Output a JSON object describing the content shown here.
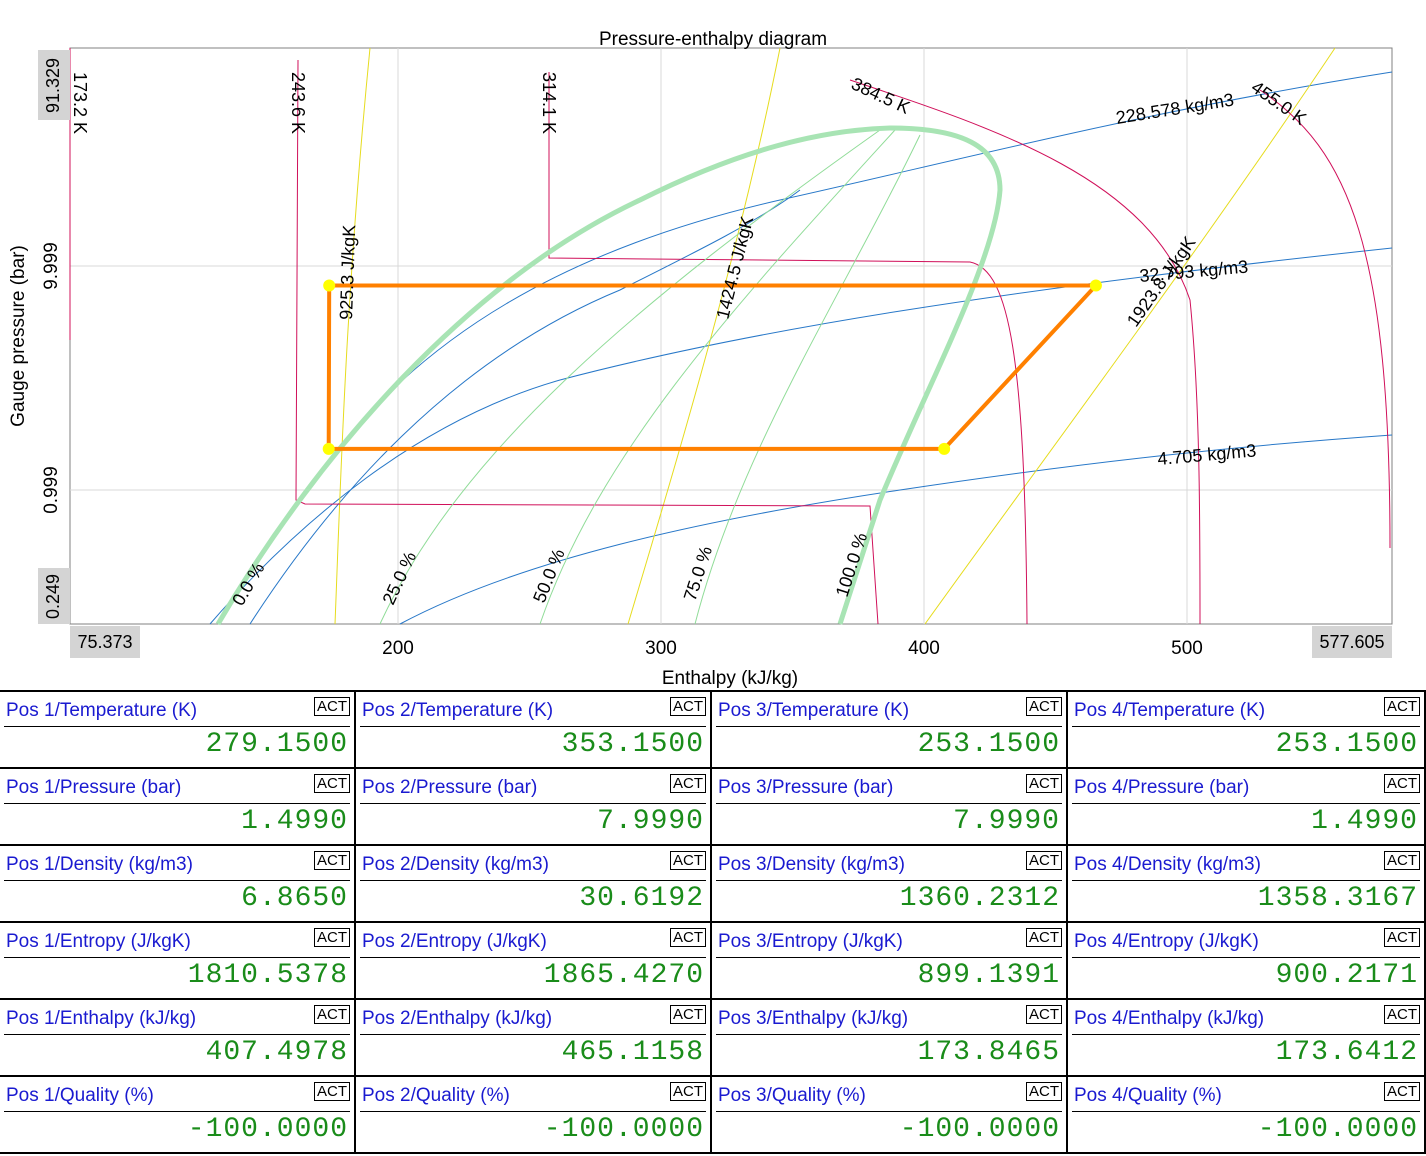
{
  "chart_data": {
    "type": "line",
    "title": "Pressure-enthalpy diagram",
    "xlabel": "Enthalpy (kJ/kg)",
    "ylabel": "Gauge pressure (bar)",
    "xlim": [
      75.373,
      577.605
    ],
    "ylim": [
      0.249,
      91.329
    ],
    "y_scale": "log",
    "grid": true,
    "x_ticks": [
      "200",
      "300",
      "400",
      "500"
    ],
    "x_range_labels": [
      "75.373",
      "577.605"
    ],
    "y_ticks": [
      "9.999",
      "0.999"
    ],
    "y_range_labels": [
      "91.329",
      "0.249"
    ],
    "isotherm_labels": [
      "173.2 K",
      "243.6 K",
      "314.1 K",
      "384.5 K",
      "455.0 K"
    ],
    "isentrope_labels": [
      "925.3 J/kgK",
      "1424.5 J/kgK",
      "1923.8 J/kgK"
    ],
    "isochore_labels": [
      "228.578 kg/m3",
      "32.793 kg/m3",
      "4.705 kg/m3"
    ],
    "quality_labels": [
      "0.0 %",
      "25.0 %",
      "50.0 %",
      "75.0 %",
      "100.0 %"
    ],
    "cycle": [
      {
        "name": "Pos 1",
        "h": 407.4978,
        "p": 1.499
      },
      {
        "name": "Pos 2",
        "h": 465.1158,
        "p": 7.999
      },
      {
        "name": "Pos 3",
        "h": 173.8465,
        "p": 7.999
      },
      {
        "name": "Pos 4",
        "h": 173.6412,
        "p": 1.499
      }
    ],
    "colors": {
      "cycle": "#ff8000",
      "points": "#ffff00",
      "saturation": "#a8e4b4",
      "quality": "#90dc98",
      "isotherm": "#d0105a",
      "isentrope": "#e6dc1e",
      "isochore": "#2878c8"
    }
  },
  "table": {
    "act_label": "ACT",
    "rows": [
      [
        {
          "label": "Pos 1/Temperature (K)",
          "value": "279.1500"
        },
        {
          "label": "Pos 2/Temperature (K)",
          "value": "353.1500"
        },
        {
          "label": "Pos 3/Temperature (K)",
          "value": "253.1500"
        },
        {
          "label": "Pos 4/Temperature (K)",
          "value": "253.1500"
        }
      ],
      [
        {
          "label": "Pos 1/Pressure (bar)",
          "value": "1.4990"
        },
        {
          "label": "Pos 2/Pressure (bar)",
          "value": "7.9990"
        },
        {
          "label": "Pos 3/Pressure (bar)",
          "value": "7.9990"
        },
        {
          "label": "Pos 4/Pressure (bar)",
          "value": "1.4990"
        }
      ],
      [
        {
          "label": "Pos 1/Density (kg/m3)",
          "value": "6.8650"
        },
        {
          "label": "Pos 2/Density (kg/m3)",
          "value": "30.6192"
        },
        {
          "label": "Pos 3/Density (kg/m3)",
          "value": "1360.2312"
        },
        {
          "label": "Pos 4/Density (kg/m3)",
          "value": "1358.3167"
        }
      ],
      [
        {
          "label": "Pos 1/Entropy (J/kgK)",
          "value": "1810.5378"
        },
        {
          "label": "Pos 2/Entropy (J/kgK)",
          "value": "1865.4270"
        },
        {
          "label": "Pos 3/Entropy (J/kgK)",
          "value": "899.1391"
        },
        {
          "label": "Pos 4/Entropy (J/kgK)",
          "value": "900.2171"
        }
      ],
      [
        {
          "label": "Pos 1/Enthalpy (kJ/kg)",
          "value": "407.4978"
        },
        {
          "label": "Pos 2/Enthalpy (kJ/kg)",
          "value": "465.1158"
        },
        {
          "label": "Pos 3/Enthalpy (kJ/kg)",
          "value": "173.8465"
        },
        {
          "label": "Pos 4/Enthalpy (kJ/kg)",
          "value": "173.6412"
        }
      ],
      [
        {
          "label": "Pos 1/Quality (%)",
          "value": "-100.0000"
        },
        {
          "label": "Pos 2/Quality (%)",
          "value": "-100.0000"
        },
        {
          "label": "Pos 3/Quality (%)",
          "value": "-100.0000"
        },
        {
          "label": "Pos 4/Quality (%)",
          "value": "-100.0000"
        }
      ]
    ]
  }
}
